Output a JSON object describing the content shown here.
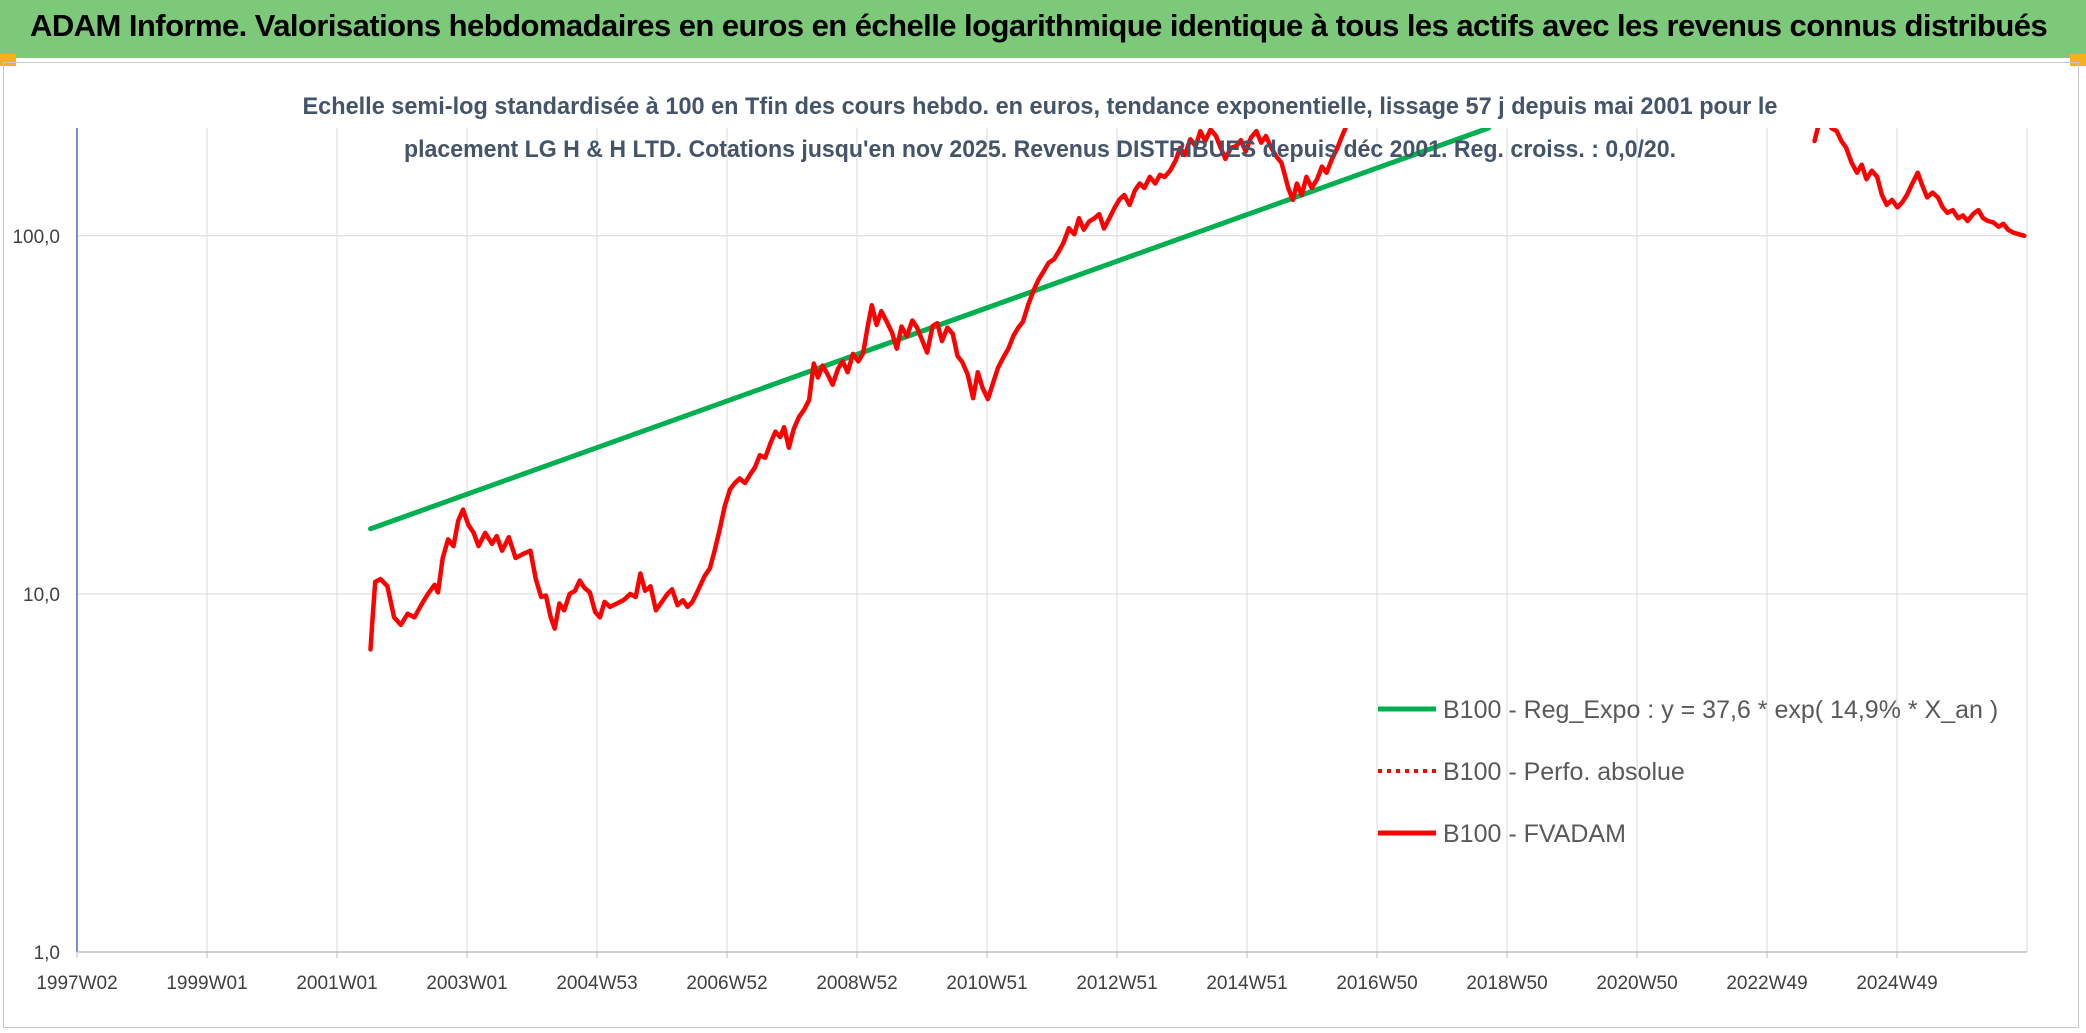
{
  "header": {
    "banner_title": "ADAM Informe. Valorisations hebdomadaires en euros en échelle logarithmique identique à tous les actifs avec les revenus connus distribués"
  },
  "colors": {
    "banner": "#7dc97a",
    "corner_accent": "#f2b21b",
    "series_red": "#ff0000",
    "series_green": "#00b050",
    "grid": "#d9d9d9"
  },
  "chart_data": {
    "type": "line",
    "title_lines": [
      "Echelle semi-log standardisée à 100 en Tfin des cours hebdo. en euros, tendance exponentielle, lissage 57 j depuis mai 2001 pour le",
      "placement LG H & H LTD. Cotations jusqu'en nov 2025. Revenus DISTRIBUES depuis déc 2001. Reg. croiss. : 0,0/20."
    ],
    "y_scale": "log",
    "ylim": [
      1,
      200
    ],
    "y_ticks": [
      "100,0",
      "10,0",
      "1,0"
    ],
    "x_range": [
      1997.0,
      2025.9
    ],
    "x_ticks": [
      "1997W02",
      "1999W01",
      "2001W01",
      "2003W01",
      "2004W53",
      "2006W52",
      "2008W52",
      "2010W51",
      "2012W51",
      "2014W51",
      "2016W50",
      "2018W50",
      "2020W50",
      "2022W49",
      "2024W49"
    ],
    "grid": true,
    "legend_position": "right",
    "series": [
      {
        "name": "B100 - Reg_Expo : y = 37,6 * exp( 14,9% *  X_an )",
        "style": "solid",
        "color": "#00b050",
        "points": [
          [
            2001.35,
            15.2
          ],
          [
            2017.92,
            200
          ]
        ]
      },
      {
        "name": "B100 - Perfo. absolue",
        "style": "dotted",
        "color": "#ff0000",
        "points": []
      },
      {
        "name": "B100 - FVADAM",
        "style": "solid",
        "color": "#ff0000",
        "segments": [
          [
            [
              2001.35,
              7.0
            ],
            [
              2001.38,
              8.5
            ],
            [
              2001.42,
              10.8
            ],
            [
              2001.5,
              11.0
            ],
            [
              2001.6,
              10.5
            ],
            [
              2001.7,
              8.6
            ],
            [
              2001.8,
              8.2
            ],
            [
              2001.9,
              8.8
            ],
            [
              2002.0,
              8.6
            ],
            [
              2002.1,
              9.3
            ],
            [
              2002.2,
              10.0
            ],
            [
              2002.3,
              10.6
            ],
            [
              2002.35,
              10.1
            ],
            [
              2002.42,
              12.6
            ],
            [
              2002.5,
              14.2
            ],
            [
              2002.58,
              13.6
            ],
            [
              2002.65,
              16.0
            ],
            [
              2002.72,
              17.2
            ],
            [
              2002.8,
              15.6
            ],
            [
              2002.88,
              14.8
            ],
            [
              2002.95,
              13.6
            ],
            [
              2003.05,
              14.8
            ],
            [
              2003.15,
              13.8
            ],
            [
              2003.22,
              14.5
            ],
            [
              2003.3,
              13.2
            ],
            [
              2003.4,
              14.4
            ],
            [
              2003.5,
              12.6
            ],
            [
              2003.6,
              12.9
            ],
            [
              2003.72,
              13.2
            ],
            [
              2003.8,
              11.0
            ],
            [
              2003.88,
              9.8
            ],
            [
              2003.95,
              9.9
            ],
            [
              2004.02,
              8.6
            ],
            [
              2004.08,
              8.0
            ],
            [
              2004.15,
              9.4
            ],
            [
              2004.22,
              9.0
            ],
            [
              2004.3,
              10.0
            ],
            [
              2004.38,
              10.2
            ],
            [
              2004.45,
              10.9
            ],
            [
              2004.52,
              10.4
            ],
            [
              2004.6,
              10.1
            ],
            [
              2004.68,
              8.9
            ],
            [
              2004.75,
              8.6
            ],
            [
              2004.82,
              9.5
            ],
            [
              2004.9,
              9.2
            ],
            [
              2005.0,
              9.4
            ],
            [
              2005.1,
              9.6
            ],
            [
              2005.2,
              10.0
            ],
            [
              2005.28,
              9.8
            ],
            [
              2005.35,
              11.4
            ],
            [
              2005.42,
              10.2
            ],
            [
              2005.5,
              10.5
            ],
            [
              2005.58,
              9.0
            ],
            [
              2005.65,
              9.4
            ],
            [
              2005.75,
              10.0
            ],
            [
              2005.82,
              10.3
            ],
            [
              2005.9,
              9.3
            ],
            [
              2005.98,
              9.6
            ],
            [
              2006.05,
              9.2
            ],
            [
              2006.12,
              9.5
            ],
            [
              2006.2,
              10.2
            ],
            [
              2006.3,
              11.2
            ],
            [
              2006.38,
              11.8
            ],
            [
              2006.45,
              13.2
            ],
            [
              2006.52,
              15.0
            ],
            [
              2006.6,
              17.6
            ],
            [
              2006.68,
              19.6
            ],
            [
              2006.75,
              20.4
            ],
            [
              2006.82,
              21.0
            ],
            [
              2006.9,
              20.4
            ],
            [
              2006.98,
              21.6
            ],
            [
              2007.05,
              22.6
            ],
            [
              2007.12,
              24.4
            ],
            [
              2007.2,
              24.0
            ],
            [
              2007.28,
              26.4
            ],
            [
              2007.35,
              28.4
            ],
            [
              2007.42,
              27.4
            ],
            [
              2007.48,
              29.2
            ],
            [
              2007.55,
              25.6
            ],
            [
              2007.62,
              28.8
            ],
            [
              2007.7,
              31.2
            ],
            [
              2007.78,
              32.8
            ],
            [
              2007.85,
              34.8
            ],
            [
              2007.92,
              44.0
            ],
            [
              2007.98,
              40.2
            ],
            [
              2008.05,
              43.4
            ],
            [
              2008.12,
              41.2
            ],
            [
              2008.2,
              38.4
            ],
            [
              2008.28,
              42.6
            ],
            [
              2008.35,
              44.6
            ],
            [
              2008.42,
              41.6
            ],
            [
              2008.5,
              46.8
            ],
            [
              2008.58,
              44.6
            ],
            [
              2008.65,
              47.0
            ],
            [
              2008.72,
              56.0
            ],
            [
              2008.78,
              64.0
            ],
            [
              2008.85,
              56.4
            ],
            [
              2008.92,
              61.6
            ],
            [
              2009.0,
              57.6
            ],
            [
              2009.08,
              53.6
            ],
            [
              2009.15,
              48.4
            ],
            [
              2009.22,
              55.8
            ],
            [
              2009.3,
              52.4
            ],
            [
              2009.38,
              58.0
            ],
            [
              2009.45,
              55.4
            ],
            [
              2009.52,
              51.4
            ],
            [
              2009.6,
              47.2
            ],
            [
              2009.68,
              56.0
            ],
            [
              2009.75,
              57.0
            ],
            [
              2009.82,
              50.8
            ],
            [
              2009.9,
              55.4
            ],
            [
              2009.98,
              53.2
            ],
            [
              2010.05,
              46.2
            ],
            [
              2010.12,
              44.4
            ],
            [
              2010.2,
              41.0
            ],
            [
              2010.28,
              35.2
            ],
            [
              2010.35,
              41.6
            ],
            [
              2010.42,
              37.6
            ],
            [
              2010.5,
              35.0
            ],
            [
              2010.58,
              39.0
            ],
            [
              2010.65,
              42.8
            ],
            [
              2010.72,
              45.4
            ],
            [
              2010.8,
              48.2
            ],
            [
              2010.88,
              52.6
            ],
            [
              2010.95,
              55.4
            ],
            [
              2011.02,
              57.6
            ],
            [
              2011.1,
              64.4
            ],
            [
              2011.18,
              70.6
            ],
            [
              2011.25,
              75.4
            ],
            [
              2011.32,
              79.2
            ],
            [
              2011.4,
              84.0
            ],
            [
              2011.48,
              86.0
            ],
            [
              2011.55,
              90.4
            ],
            [
              2011.62,
              95.6
            ],
            [
              2011.7,
              105.0
            ],
            [
              2011.78,
              101.0
            ],
            [
              2011.85,
              112.0
            ],
            [
              2011.92,
              104.0
            ],
            [
              2012.0,
              109.6
            ],
            [
              2012.08,
              112.0
            ],
            [
              2012.15,
              115.0
            ],
            [
              2012.22,
              104.8
            ],
            [
              2012.3,
              112.0
            ],
            [
              2012.38,
              120.0
            ],
            [
              2012.45,
              126.4
            ],
            [
              2012.52,
              130.0
            ],
            [
              2012.6,
              122.0
            ],
            [
              2012.68,
              134.0
            ],
            [
              2012.75,
              140.0
            ],
            [
              2012.82,
              136.0
            ],
            [
              2012.9,
              146.0
            ],
            [
              2012.98,
              140.0
            ],
            [
              2013.05,
              148.0
            ],
            [
              2013.12,
              146.0
            ],
            [
              2013.2,
              152.0
            ],
            [
              2013.28,
              162.0
            ],
            [
              2013.35,
              176.0
            ],
            [
              2013.42,
              168.0
            ],
            [
              2013.5,
              186.0
            ],
            [
              2013.58,
              178.0
            ],
            [
              2013.65,
              196.0
            ],
            [
              2013.72,
              184.0
            ],
            [
              2013.8,
              198.0
            ],
            [
              2013.88,
              190.0
            ],
            [
              2013.95,
              176.0
            ],
            [
              2014.02,
              164.0
            ],
            [
              2014.1,
              176.0
            ],
            [
              2014.18,
              178.0
            ],
            [
              2014.25,
              185.0
            ],
            [
              2014.32,
              172.0
            ],
            [
              2014.4,
              188.0
            ],
            [
              2014.48,
              196.0
            ],
            [
              2014.55,
              182.0
            ],
            [
              2014.62,
              190.0
            ],
            [
              2014.7,
              176.0
            ],
            [
              2014.78,
              166.0
            ],
            [
              2014.85,
              160.0
            ],
            [
              2014.9,
              148.0
            ],
            [
              2014.95,
              136.0
            ],
            [
              2015.02,
              126.0
            ],
            [
              2015.08,
              140.0
            ],
            [
              2015.15,
              130.0
            ],
            [
              2015.22,
              146.0
            ],
            [
              2015.3,
              136.0
            ],
            [
              2015.38,
              144.0
            ],
            [
              2015.45,
              156.0
            ],
            [
              2015.52,
              150.0
            ],
            [
              2015.6,
              164.0
            ],
            [
              2015.68,
              176.0
            ],
            [
              2015.75,
              190.0
            ],
            [
              2015.8,
              200.0
            ]
          ],
          [
            [
              2022.75,
              184.0
            ],
            [
              2022.8,
              200.0
            ]
          ],
          [
            [
              2023.0,
              200.0
            ],
            [
              2023.08,
              196.0
            ],
            [
              2023.15,
              184.0
            ],
            [
              2023.22,
              176.0
            ],
            [
              2023.3,
              160.0
            ],
            [
              2023.38,
              150.0
            ],
            [
              2023.45,
              158.0
            ],
            [
              2023.52,
              144.0
            ],
            [
              2023.6,
              152.0
            ],
            [
              2023.68,
              146.0
            ],
            [
              2023.75,
              130.0
            ],
            [
              2023.82,
              122.0
            ],
            [
              2023.9,
              126.0
            ],
            [
              2023.98,
              120.0
            ],
            [
              2024.05,
              124.0
            ],
            [
              2024.12,
              130.0
            ],
            [
              2024.2,
              140.0
            ],
            [
              2024.28,
              150.0
            ],
            [
              2024.35,
              138.0
            ],
            [
              2024.42,
              128.0
            ],
            [
              2024.5,
              132.0
            ],
            [
              2024.58,
              128.0
            ],
            [
              2024.65,
              120.0
            ],
            [
              2024.72,
              116.0
            ],
            [
              2024.8,
              118.0
            ],
            [
              2024.88,
              112.0
            ],
            [
              2024.95,
              114.0
            ],
            [
              2025.02,
              110.0
            ],
            [
              2025.1,
              115.0
            ],
            [
              2025.18,
              118.0
            ],
            [
              2025.25,
              112.0
            ],
            [
              2025.32,
              110.0
            ],
            [
              2025.4,
              109.0
            ],
            [
              2025.48,
              106.0
            ],
            [
              2025.55,
              108.0
            ],
            [
              2025.62,
              104.0
            ],
            [
              2025.7,
              102.0
            ],
            [
              2025.78,
              101.0
            ],
            [
              2025.86,
              100.0
            ]
          ]
        ]
      }
    ]
  }
}
